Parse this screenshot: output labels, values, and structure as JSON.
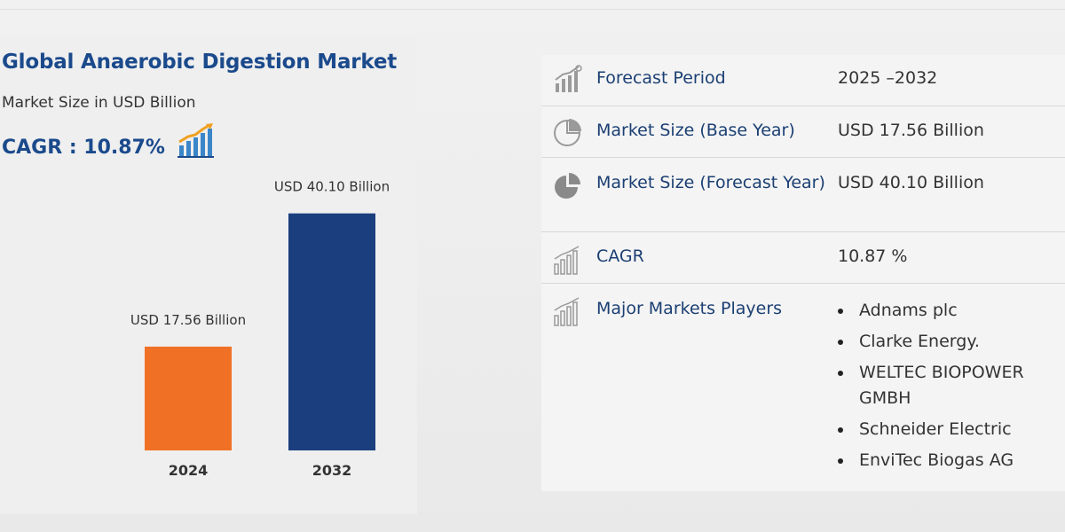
{
  "header": {
    "title": "Global Anaerobic Digestion Market",
    "subtitle": "Market Size in USD Billion",
    "cagr_label": "CAGR : 10.87%"
  },
  "chart_data": {
    "type": "bar",
    "categories": [
      "2024",
      "2032"
    ],
    "values": [
      17.56,
      40.1
    ],
    "data_labels": [
      "USD 17.56 Billion",
      "USD 40.10 Billion"
    ],
    "colors": [
      "#f07126",
      "#1b3f7e"
    ],
    "title": "Global Anaerobic Digestion Market",
    "xlabel": "",
    "ylabel": "Market Size in USD Billion",
    "ylim": [
      0,
      45
    ],
    "grid": false,
    "legend": "none"
  },
  "info_table": {
    "rows": [
      {
        "label": "Forecast Period",
        "value": "2025 –2032",
        "icon": "bar-chart-growth-icon"
      },
      {
        "label": "Market Size (Base Year)",
        "value": "USD 17.56 Billion",
        "icon": "pie-chart-outline-icon"
      },
      {
        "label": "Market Size (Forecast Year)",
        "value": "USD 40.10 Billion",
        "icon": "pie-chart-filled-icon"
      },
      {
        "label": "CAGR",
        "value": "10.87 %",
        "icon": "bar-chart-icon"
      }
    ],
    "players": {
      "label": "Major Markets Players",
      "icon": "bar-chart-icon",
      "items": [
        "Adnams plc",
        "Clarke Energy.",
        "WELTEC BIOPOWER GMBH",
        "Schneider Electric",
        "EnviTec Biogas AG"
      ]
    }
  },
  "colors": {
    "accent_blue": "#1b4a8c",
    "orange": "#f07126",
    "navy": "#1b3f7e"
  }
}
